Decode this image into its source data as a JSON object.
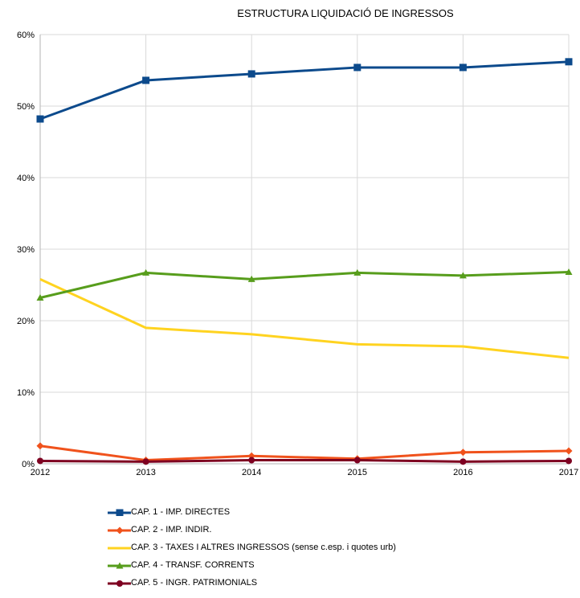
{
  "chart_data": {
    "type": "line",
    "title": "ESTRUCTURA LIQUIDACIÓ DE INGRESSOS",
    "xlabel": "",
    "ylabel": "",
    "x": [
      "2012",
      "2013",
      "2014",
      "2015",
      "2016",
      "2017"
    ],
    "ylim": [
      0,
      60
    ],
    "yticks": [
      "0%",
      "10%",
      "20%",
      "30%",
      "40%",
      "50%",
      "60%"
    ],
    "grid": true,
    "legend_position": "bottom",
    "series": [
      {
        "name": "CAP. 1 - IMP. DIRECTES",
        "color": "#0c4a8c",
        "marker": "square",
        "values": [
          48.2,
          53.6,
          54.5,
          55.4,
          55.4,
          56.2
        ]
      },
      {
        "name": "CAP. 2 - IMP. INDIR.",
        "color": "#f0521c",
        "marker": "diamond",
        "values": [
          2.5,
          0.5,
          1.1,
          0.7,
          1.6,
          1.8
        ]
      },
      {
        "name": "CAP. 3 - TAXES I ALTRES INGRESSOS (sense c.esp. i quotes urb)",
        "color": "#ffd320",
        "marker": "none",
        "values": [
          25.8,
          19.0,
          18.1,
          16.7,
          16.4,
          14.8
        ]
      },
      {
        "name": "CAP. 4 - TRANSF. CORRENTS",
        "color": "#579d1c",
        "marker": "triangle",
        "values": [
          23.2,
          26.7,
          25.8,
          26.7,
          26.3,
          26.8
        ]
      },
      {
        "name": "CAP. 5 - INGR. PATRIMONIALS",
        "color": "#7e0021",
        "marker": "circle",
        "values": [
          0.4,
          0.3,
          0.5,
          0.5,
          0.3,
          0.4
        ]
      }
    ]
  }
}
